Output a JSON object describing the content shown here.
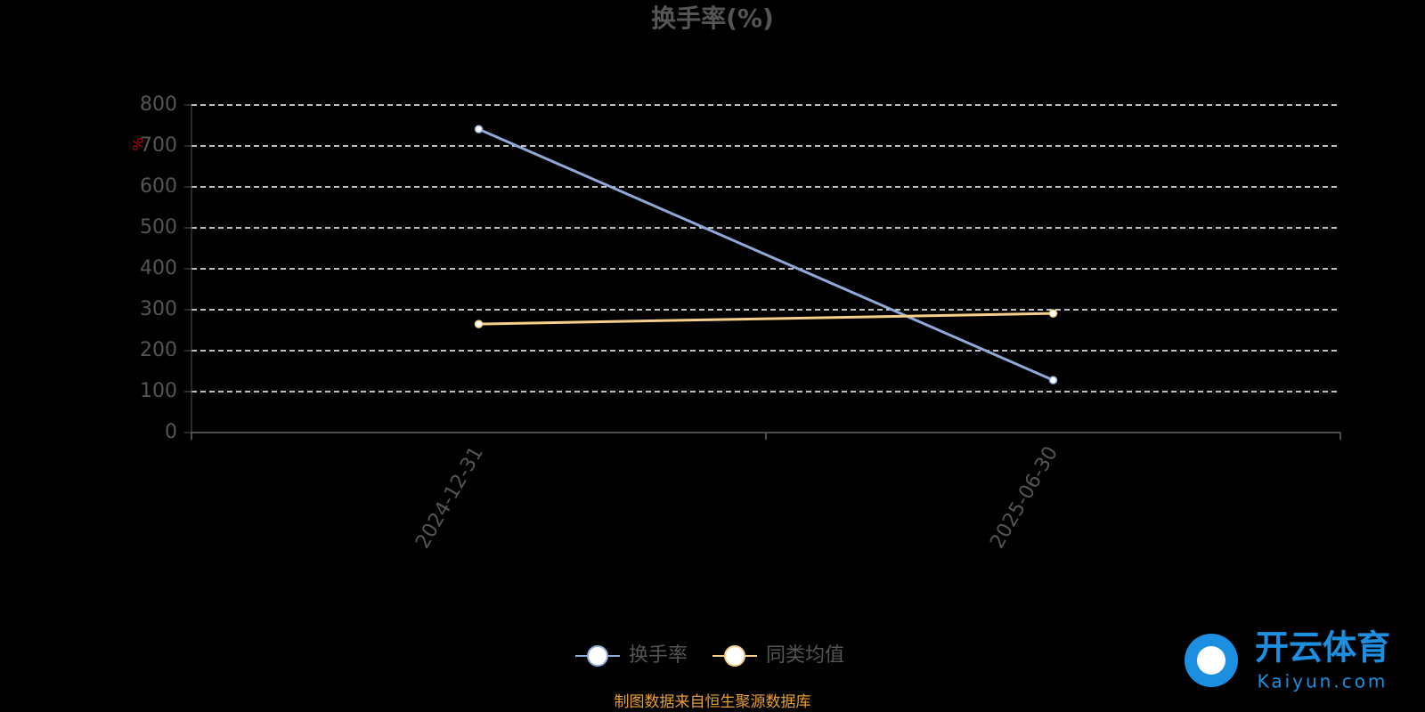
{
  "chart_data": {
    "type": "line",
    "title": "换手率(%)",
    "y_unit": "%",
    "categories": [
      "2024-12-31",
      "2025-06-30"
    ],
    "series": [
      {
        "name": "换手率",
        "color": "#8fa9d8",
        "values": [
          741,
          128
        ]
      },
      {
        "name": "同类均值",
        "color": "#f5cf8a",
        "values": [
          265,
          291
        ]
      }
    ],
    "ylim": [
      0,
      800
    ],
    "yticks": [
      0,
      100,
      200,
      300,
      400,
      500,
      600,
      700,
      800
    ],
    "grid": true,
    "source": "制图数据来自恒生聚源数据库",
    "watermark": [
      "开云体育",
      "Kaiyun.com"
    ]
  }
}
